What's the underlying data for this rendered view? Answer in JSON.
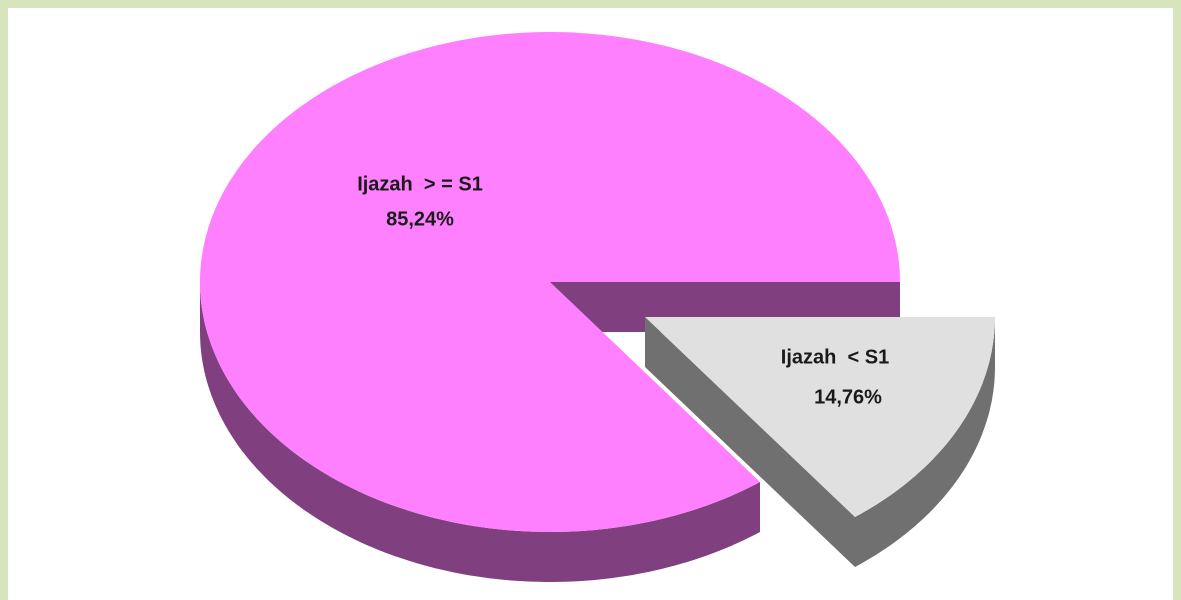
{
  "chart_data": {
    "type": "pie",
    "categories": [
      "Ijazah  > = S1",
      "Ijazah  < S1"
    ],
    "values": [
      85.24,
      14.76
    ],
    "value_labels": [
      "85,24%",
      "14,76%"
    ],
    "colors": [
      "#ff80ff",
      "#e0e0e0"
    ]
  }
}
